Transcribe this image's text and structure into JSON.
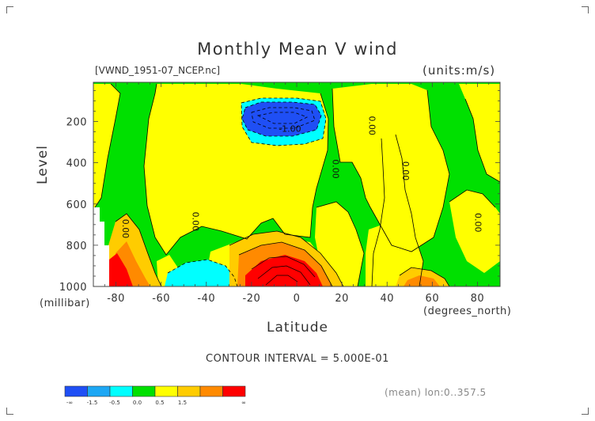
{
  "title": "Monthly Mean V wind",
  "file_label": "[VWND_1951-07_NCEP.nc]",
  "units": "(units:m/s)",
  "contour_interval": "CONTOUR INTERVAL = 5.000E-01",
  "mean_note": "(mean) lon:0..357.5",
  "chart_data": {
    "type": "heatmap",
    "title": "Monthly Mean V wind",
    "xlabel": "Latitude",
    "xunit": "(degrees_north)",
    "ylabel": "Level",
    "yunit": "(millibar)",
    "xlim": [
      -90,
      90
    ],
    "ylim": [
      1000,
      10
    ],
    "x_ticks": [
      -80,
      -60,
      -40,
      -20,
      0,
      20,
      40,
      60,
      80
    ],
    "x_tick_labels": [
      "-80",
      "-60",
      "-40",
      "-20",
      "0",
      "20",
      "40",
      "60",
      "80"
    ],
    "y_ticks": [
      200,
      400,
      600,
      800,
      1000
    ],
    "y_tick_labels": [
      "200",
      "400",
      "600",
      "800",
      "1000"
    ],
    "contour_labels": [
      {
        "text": "0.00",
        "lat": -77,
        "level": 720
      },
      {
        "text": "0.00",
        "lat": -46,
        "level": 685
      },
      {
        "text": "0.00",
        "lat": 32,
        "level": 220
      },
      {
        "text": "0.00",
        "lat": 16,
        "level": 430
      },
      {
        "text": "0.00",
        "lat": 47,
        "level": 440
      },
      {
        "text": "0.00",
        "lat": 79,
        "level": 690
      },
      {
        "text": "-1.00",
        "lat": -3,
        "level": 250
      }
    ],
    "legend": {
      "bins": [
        "-∞..-1.5",
        "-1.5..-1.0",
        "-1.0..-0.5",
        "-0.5..0.0",
        "0.0..0.5",
        "0.5..1.0",
        "1.0..1.5",
        "1.5..∞"
      ],
      "colors": [
        "#1f4ff5",
        "#1da7f4",
        "#00ffff",
        "#00e000",
        "#ffff00",
        "#ffcc00",
        "#ff8a00",
        "#ff0000"
      ],
      "tick_labels": [
        "-∞",
        "-1.5",
        "-0.5",
        "0.0",
        "0.5",
        "1.5",
        "∞"
      ]
    },
    "colors": {
      "strong_negative": "#1f4ff5",
      "negative": "#00ffff",
      "near_zero_negative": "#00e000",
      "near_zero_positive": "#ffff00",
      "positive": "#ffa500",
      "strong_positive": "#ff0000"
    }
  }
}
